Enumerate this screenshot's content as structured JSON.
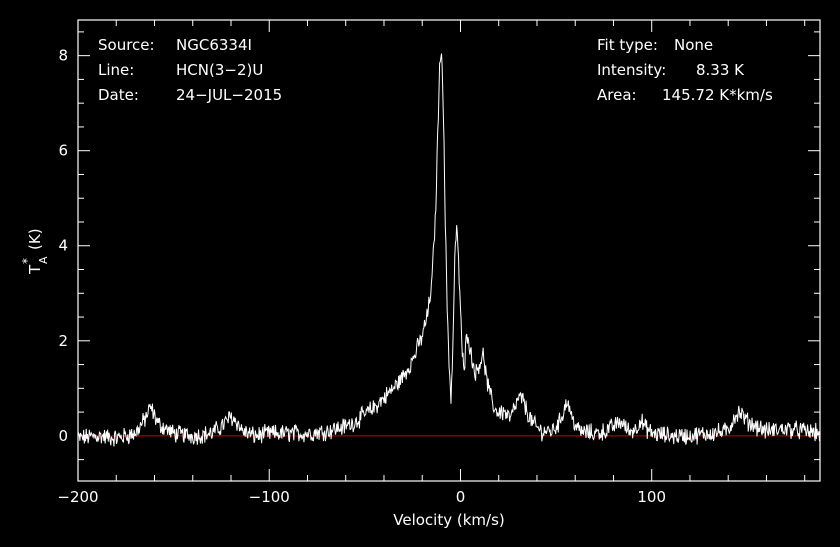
{
  "header_left": {
    "source_label": "Source:",
    "source_value": "NGC6334I",
    "line_label": "Line:",
    "line_value": "HCN(3−2)U",
    "date_label": "Date:",
    "date_value": "24−JUL−2015"
  },
  "header_right": {
    "fit_label": "Fit type:",
    "fit_value": "None",
    "intensity_label": "Intensity:",
    "intensity_value": "8.33 K",
    "area_label": "Area:",
    "area_value": "145.72 K*km/s"
  },
  "chart_data": {
    "type": "line",
    "xlabel": "Velocity (km/s)",
    "ylabel_main": "T",
    "ylabel_sup": "*",
    "ylabel_sub": "A",
    "ylabel_unit": "(K)",
    "xlim": [
      -200,
      188
    ],
    "ylim": [
      -0.95,
      8.75
    ],
    "xticks": [
      -200,
      -100,
      0,
      100
    ],
    "xtick_labels": [
      "−200",
      "−100",
      "0",
      "100"
    ],
    "yticks": [
      0,
      2,
      4,
      6,
      8
    ],
    "ytick_labels": [
      "0",
      "2",
      "4",
      "6",
      "8"
    ],
    "baseline": 0,
    "colors": {
      "spectrum": "#ffffff",
      "baseline": "#cc0000",
      "frame": "#ffffff"
    },
    "series": [
      {
        "x": [
          -200,
          -190,
          -180,
          -170,
          -165,
          -162,
          -158,
          -150,
          -140,
          -130,
          -125,
          -120,
          -117,
          -114,
          -108,
          -100,
          -90,
          -80,
          -70,
          -60,
          -55,
          -50,
          -45,
          -40,
          -35,
          -30,
          -25,
          -20,
          -17,
          -15,
          -13,
          -12,
          -11,
          -10,
          -9,
          -8,
          -7,
          -6,
          -5,
          -4,
          -3,
          -2,
          -1,
          0,
          1,
          2,
          3,
          4,
          5,
          8,
          10,
          12,
          14,
          16,
          18,
          20,
          23,
          26,
          28,
          30,
          32,
          34,
          36,
          38,
          42,
          48,
          52,
          54,
          56,
          58,
          62,
          70,
          76,
          80,
          84,
          88,
          92,
          94,
          96,
          100,
          110,
          120,
          130,
          140,
          143,
          146,
          150,
          160,
          170,
          180,
          188
        ],
        "y": [
          -0.05,
          0.0,
          -0.05,
          0.05,
          0.35,
          0.6,
          0.25,
          0.05,
          0.0,
          0.05,
          0.2,
          0.4,
          0.3,
          0.1,
          0.0,
          0.05,
          0.05,
          0.05,
          0.1,
          0.2,
          0.3,
          0.45,
          0.6,
          0.8,
          1.0,
          1.25,
          1.6,
          2.1,
          2.6,
          3.2,
          4.7,
          6.2,
          7.6,
          8.33,
          7.0,
          4.6,
          2.8,
          1.6,
          0.75,
          1.8,
          3.7,
          4.45,
          3.6,
          2.7,
          1.7,
          1.3,
          2.05,
          2.2,
          1.8,
          1.3,
          1.55,
          1.7,
          1.1,
          0.8,
          0.55,
          0.5,
          0.5,
          0.35,
          0.55,
          0.75,
          0.8,
          0.6,
          0.4,
          0.25,
          0.1,
          0.1,
          0.3,
          0.55,
          0.75,
          0.4,
          0.1,
          0.05,
          0.1,
          0.2,
          0.3,
          0.1,
          0.15,
          0.35,
          0.2,
          0.05,
          0.0,
          0.0,
          0.05,
          0.1,
          0.4,
          0.5,
          0.3,
          0.1,
          0.15,
          0.1,
          0.05
        ]
      }
    ]
  }
}
